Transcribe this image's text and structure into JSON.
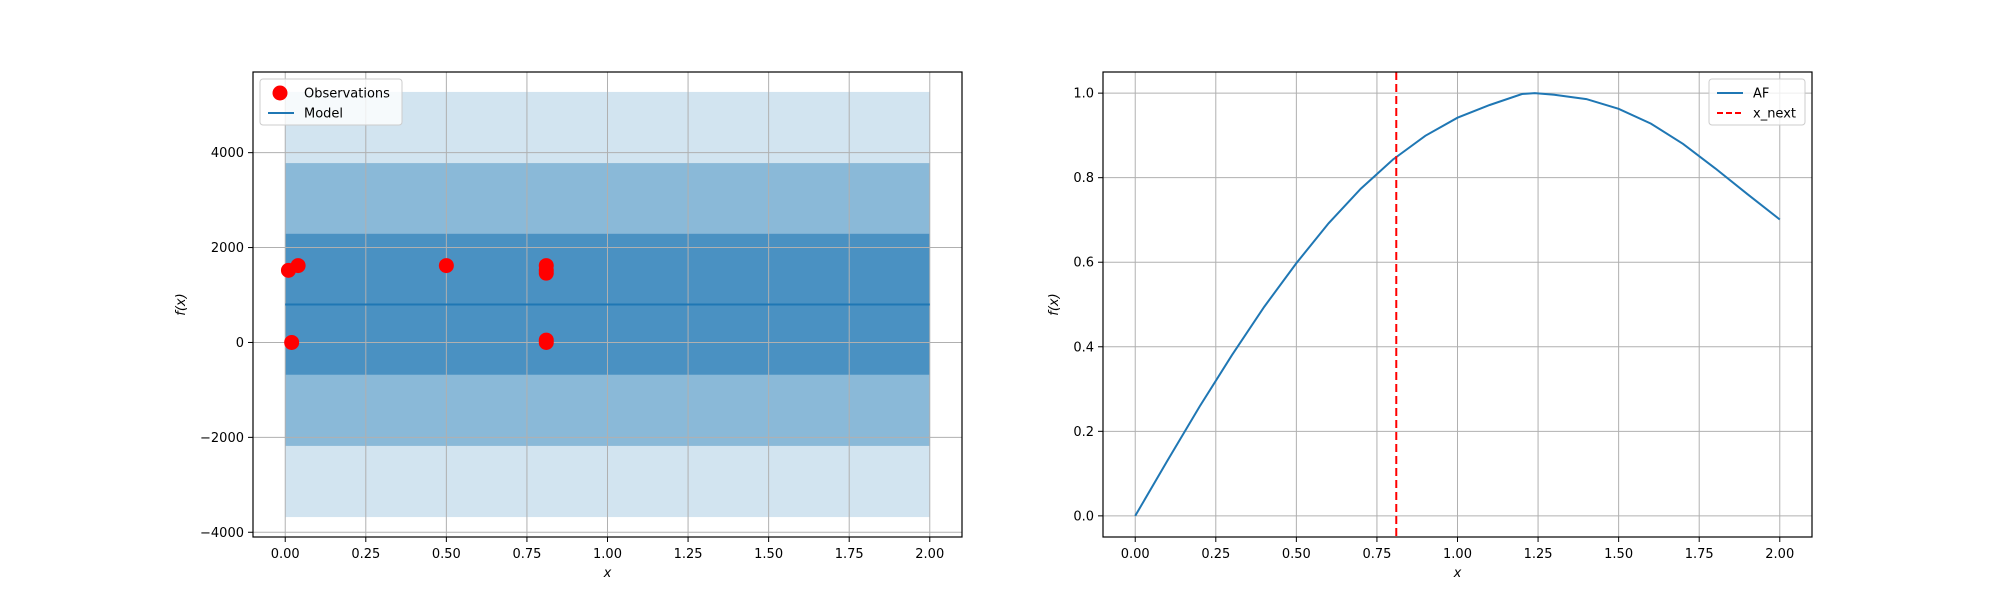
{
  "chart_data": [
    {
      "type": "line",
      "xlabel": "x",
      "ylabel": "f(x)",
      "xlim": [
        -0.1,
        2.1
      ],
      "ylim": [
        -4100,
        5700
      ],
      "xticks": [
        0.0,
        0.25,
        0.5,
        0.75,
        1.0,
        1.25,
        1.5,
        1.75,
        2.0
      ],
      "xtick_labels": [
        "0.00",
        "0.25",
        "0.50",
        "0.75",
        "1.00",
        "1.25",
        "1.50",
        "1.75",
        "2.00"
      ],
      "yticks": [
        -4000,
        -2000,
        0,
        2000,
        4000
      ],
      "ytick_labels": [
        "−4000",
        "−2000",
        "0",
        "2000",
        "4000"
      ],
      "grid": true,
      "legend_placement": "upper-left",
      "series": [
        {
          "name": "Observations",
          "kind": "scatter",
          "color": "#ff0000",
          "x": [
            0.01,
            0.04,
            0.02,
            0.5,
            0.81,
            0.81,
            0.81,
            0.81,
            0.81
          ],
          "y": [
            1520,
            1620,
            0,
            1620,
            1620,
            1520,
            1460,
            0,
            50
          ]
        },
        {
          "name": "Model",
          "kind": "line",
          "color": "#1f77b4",
          "x": [
            0.0,
            2.0
          ],
          "y": [
            800,
            800
          ]
        }
      ],
      "bands": [
        {
          "x": [
            0.0,
            2.0
          ],
          "lower": -3680,
          "upper": 5280,
          "color": "#1f77b4",
          "opacity": 0.2
        },
        {
          "x": [
            0.0,
            2.0
          ],
          "lower": -2180,
          "upper": 3780,
          "color": "#1f77b4",
          "opacity": 0.4
        },
        {
          "x": [
            0.0,
            2.0
          ],
          "lower": -680,
          "upper": 2290,
          "color": "#1f77b4",
          "opacity": 0.6
        }
      ]
    },
    {
      "type": "line",
      "xlabel": "x",
      "ylabel": "f(x)",
      "xlim": [
        -0.1,
        2.1
      ],
      "ylim": [
        -0.05,
        1.05
      ],
      "xticks": [
        0.0,
        0.25,
        0.5,
        0.75,
        1.0,
        1.25,
        1.5,
        1.75,
        2.0
      ],
      "xtick_labels": [
        "0.00",
        "0.25",
        "0.50",
        "0.75",
        "1.00",
        "1.25",
        "1.50",
        "1.75",
        "2.00"
      ],
      "yticks": [
        0.0,
        0.2,
        0.4,
        0.6,
        0.8,
        1.0
      ],
      "ytick_labels": [
        "0.0",
        "0.2",
        "0.4",
        "0.6",
        "0.8",
        "1.0"
      ],
      "grid": true,
      "legend_placement": "upper-right",
      "series": [
        {
          "name": "AF",
          "kind": "line",
          "color": "#1f77b4",
          "x": [
            0.0,
            0.1,
            0.2,
            0.3,
            0.4,
            0.5,
            0.6,
            0.7,
            0.8,
            0.9,
            1.0,
            1.1,
            1.2,
            1.24,
            1.3,
            1.4,
            1.5,
            1.6,
            1.7,
            1.8,
            1.9,
            2.0
          ],
          "y": [
            0.0,
            0.131,
            0.259,
            0.38,
            0.494,
            0.598,
            0.692,
            0.774,
            0.843,
            0.899,
            0.942,
            0.972,
            0.998,
            1.0,
            0.996,
            0.986,
            0.963,
            0.928,
            0.88,
            0.822,
            0.761,
            0.701
          ]
        },
        {
          "name": "x_next",
          "kind": "vline",
          "color": "#ff0000",
          "x": 0.81
        }
      ]
    }
  ]
}
